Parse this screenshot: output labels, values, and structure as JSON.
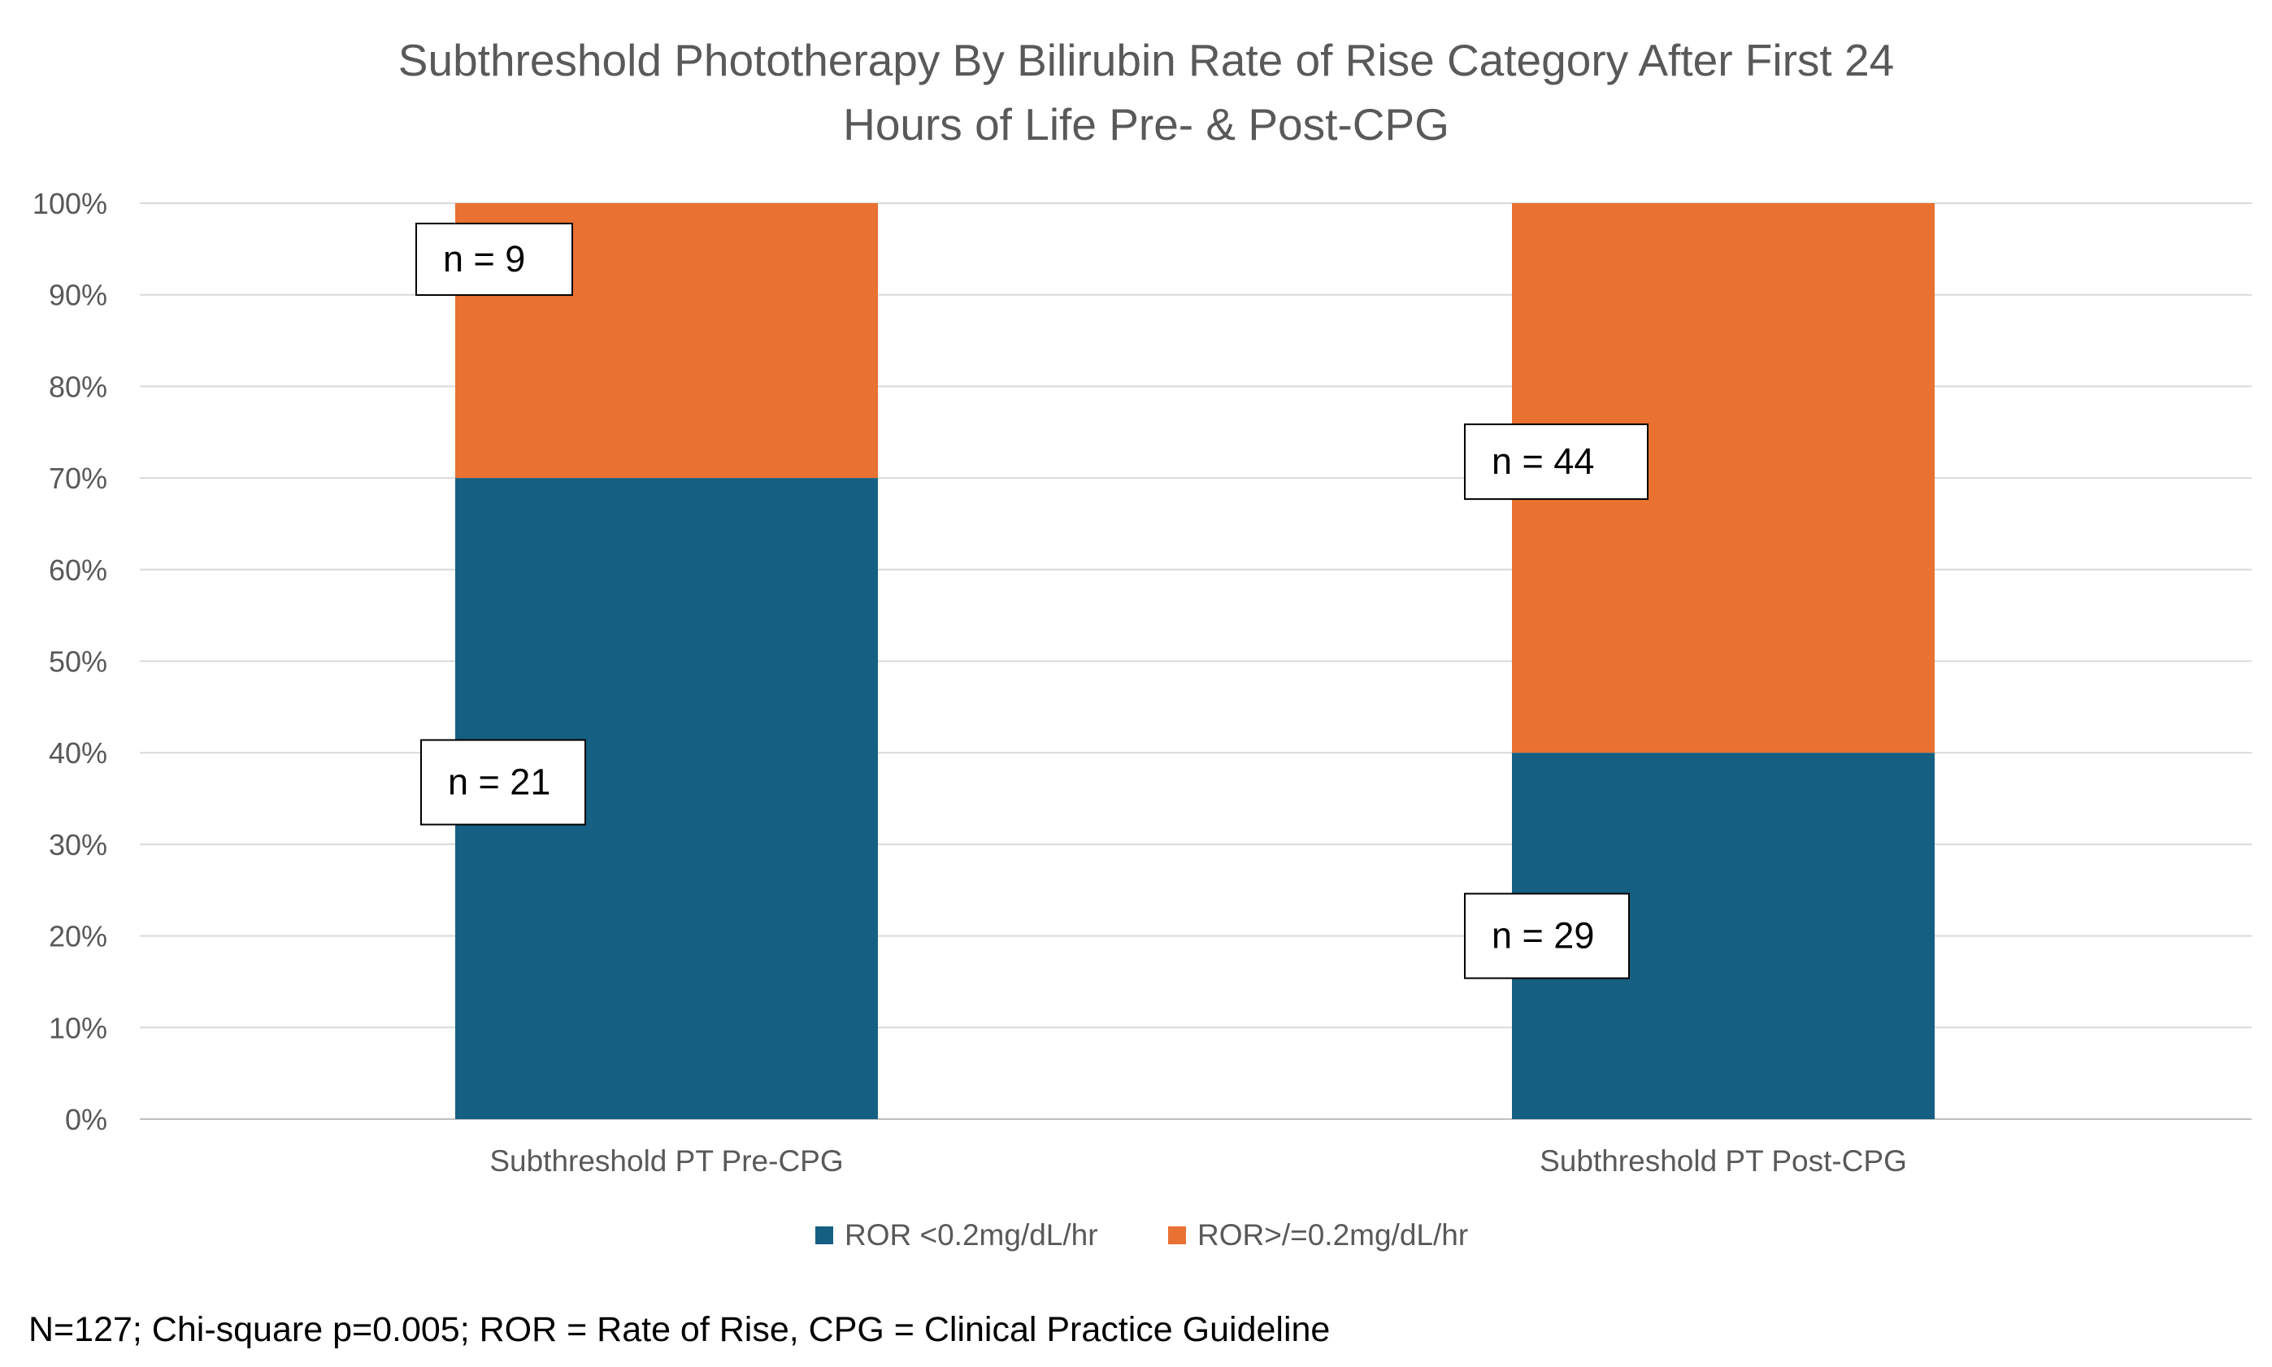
{
  "chart_data": {
    "type": "bar",
    "stacked": true,
    "normalized": true,
    "title_lines": [
      "Subthreshold Phototherapy By Bilirubin Rate of Rise Category After First 24",
      "Hours of Life Pre- & Post-CPG"
    ],
    "categories": [
      "Subthreshold PT Pre-CPG",
      "Subthreshold PT Post-CPG"
    ],
    "series": [
      {
        "name": "ROR <0.2mg/dL/hr",
        "values": [
          70,
          40
        ],
        "counts": [
          21,
          29
        ],
        "labels": [
          "n = 21",
          "n = 29"
        ],
        "color": "#156082"
      },
      {
        "name": "ROR>/=0.2mg/dL/hr",
        "values": [
          30,
          60
        ],
        "counts": [
          9,
          44
        ],
        "labels": [
          "n = 9",
          "n = 44"
        ],
        "color": "#E97132"
      }
    ],
    "ylim": [
      0,
      100
    ],
    "yticks": [
      "0%",
      "10%",
      "20%",
      "30%",
      "40%",
      "50%",
      "60%",
      "70%",
      "80%",
      "90%",
      "100%"
    ],
    "grid": true,
    "legend": "bottom",
    "footnote": "N=127; Chi-square p=0.005; ROR = Rate of Rise, CPG = Clinical Practice Guideline"
  }
}
